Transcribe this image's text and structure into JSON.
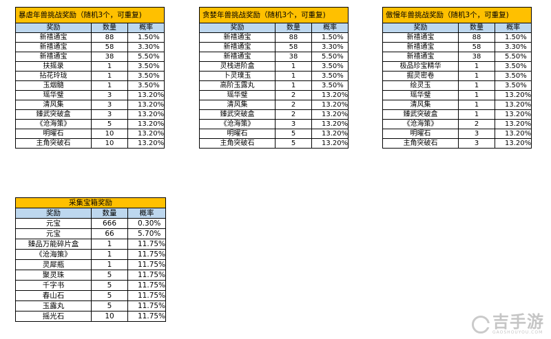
{
  "tables": [
    {
      "title": "暴虐年兽挑战奖励（随机3个，可重复)",
      "headers": [
        "奖励",
        "数量",
        "概率"
      ],
      "rows": [
        [
          "新禧通宝",
          "88",
          "1.50%"
        ],
        [
          "新禧通宝",
          "58",
          "3.30%"
        ],
        [
          "新禧通宝",
          "38",
          "5.50%"
        ],
        [
          "扶摇录",
          "1",
          "3.50%"
        ],
        [
          "拈花玲珑",
          "1",
          "3.50%"
        ],
        [
          "玉烟髓",
          "1",
          "3.50%"
        ],
        [
          "瑶华璧",
          "3",
          "13.20%"
        ],
        [
          "清风集",
          "3",
          "13.20%"
        ],
        [
          "臻武突破盒",
          "3",
          "13.20%"
        ],
        [
          "《沧海策》",
          "5",
          "13.20%"
        ],
        [
          "明曜石",
          "10",
          "13.20%"
        ],
        [
          "主角突破石",
          "10",
          "13.20%"
        ]
      ]
    },
    {
      "title": "贪婪年兽挑战奖励（随机3个，可重复)",
      "headers": [
        "奖励",
        "数量",
        "概率"
      ],
      "rows": [
        [
          "新禧通宝",
          "88",
          "1.50%"
        ],
        [
          "新禧通宝",
          "58",
          "3.30%"
        ],
        [
          "新禧通宝",
          "38",
          "5.50%"
        ],
        [
          "灵栈进阶盒",
          "1",
          "3.50%"
        ],
        [
          "卜灵璞玉",
          "1",
          "3.50%"
        ],
        [
          "高阶玉露丸",
          "1",
          "3.50%"
        ],
        [
          "瑶华璧",
          "2",
          "13.20%"
        ],
        [
          "清风集",
          "2",
          "13.20%"
        ],
        [
          "臻武突破盒",
          "2",
          "13.20%"
        ],
        [
          "《沧海策》",
          "3",
          "13.20%"
        ],
        [
          "明曜石",
          "5",
          "13.20%"
        ],
        [
          "主角突破石",
          "5",
          "13.20%"
        ]
      ]
    },
    {
      "title": "傲慢年兽挑战奖励（随机3个，可重复)",
      "headers": [
        "奖励",
        "数量",
        "概率"
      ],
      "rows": [
        [
          "新禧通宝",
          "88",
          "1.50%"
        ],
        [
          "新禧通宝",
          "58",
          "3.30%"
        ],
        [
          "新禧通宝",
          "38",
          "5.50%"
        ],
        [
          "极品珍宝精华",
          "1",
          "3.50%"
        ],
        [
          "掘灵密卷",
          "1",
          "3.50%"
        ],
        [
          "绘灵玉",
          "1",
          "3.50%"
        ],
        [
          "瑶华璧",
          "1",
          "13.20%"
        ],
        [
          "清风集",
          "1",
          "13.20%"
        ],
        [
          "臻武突破盒",
          "1",
          "13.20%"
        ],
        [
          "《沧海策》",
          "2",
          "13.20%"
        ],
        [
          "明曜石",
          "3",
          "13.20%"
        ],
        [
          "主角突破石",
          "3",
          "13.20%"
        ]
      ]
    },
    {
      "title": "采集宝箱奖励",
      "headers": [
        "奖励",
        "数量",
        "概率"
      ],
      "rows": [
        [
          "元宝",
          "666",
          "0.30%"
        ],
        [
          "元宝",
          "66",
          "5.70%"
        ],
        [
          "臻品万能碎片盒",
          "1",
          "11.75%"
        ],
        [
          "《沧海策》",
          "1",
          "11.75%"
        ],
        [
          "灵犀瓶",
          "1",
          "11.75%"
        ],
        [
          "聚灵珠",
          "5",
          "11.75%"
        ],
        [
          "千字书",
          "5",
          "11.75%"
        ],
        [
          "春山石",
          "5",
          "11.75%"
        ],
        [
          "玉露丸",
          "5",
          "11.75%"
        ],
        [
          "摇光石",
          "10",
          "11.75%"
        ]
      ]
    }
  ],
  "watermark": {
    "name": "吉手游",
    "url": "GAOSHOUYOU.COM"
  }
}
